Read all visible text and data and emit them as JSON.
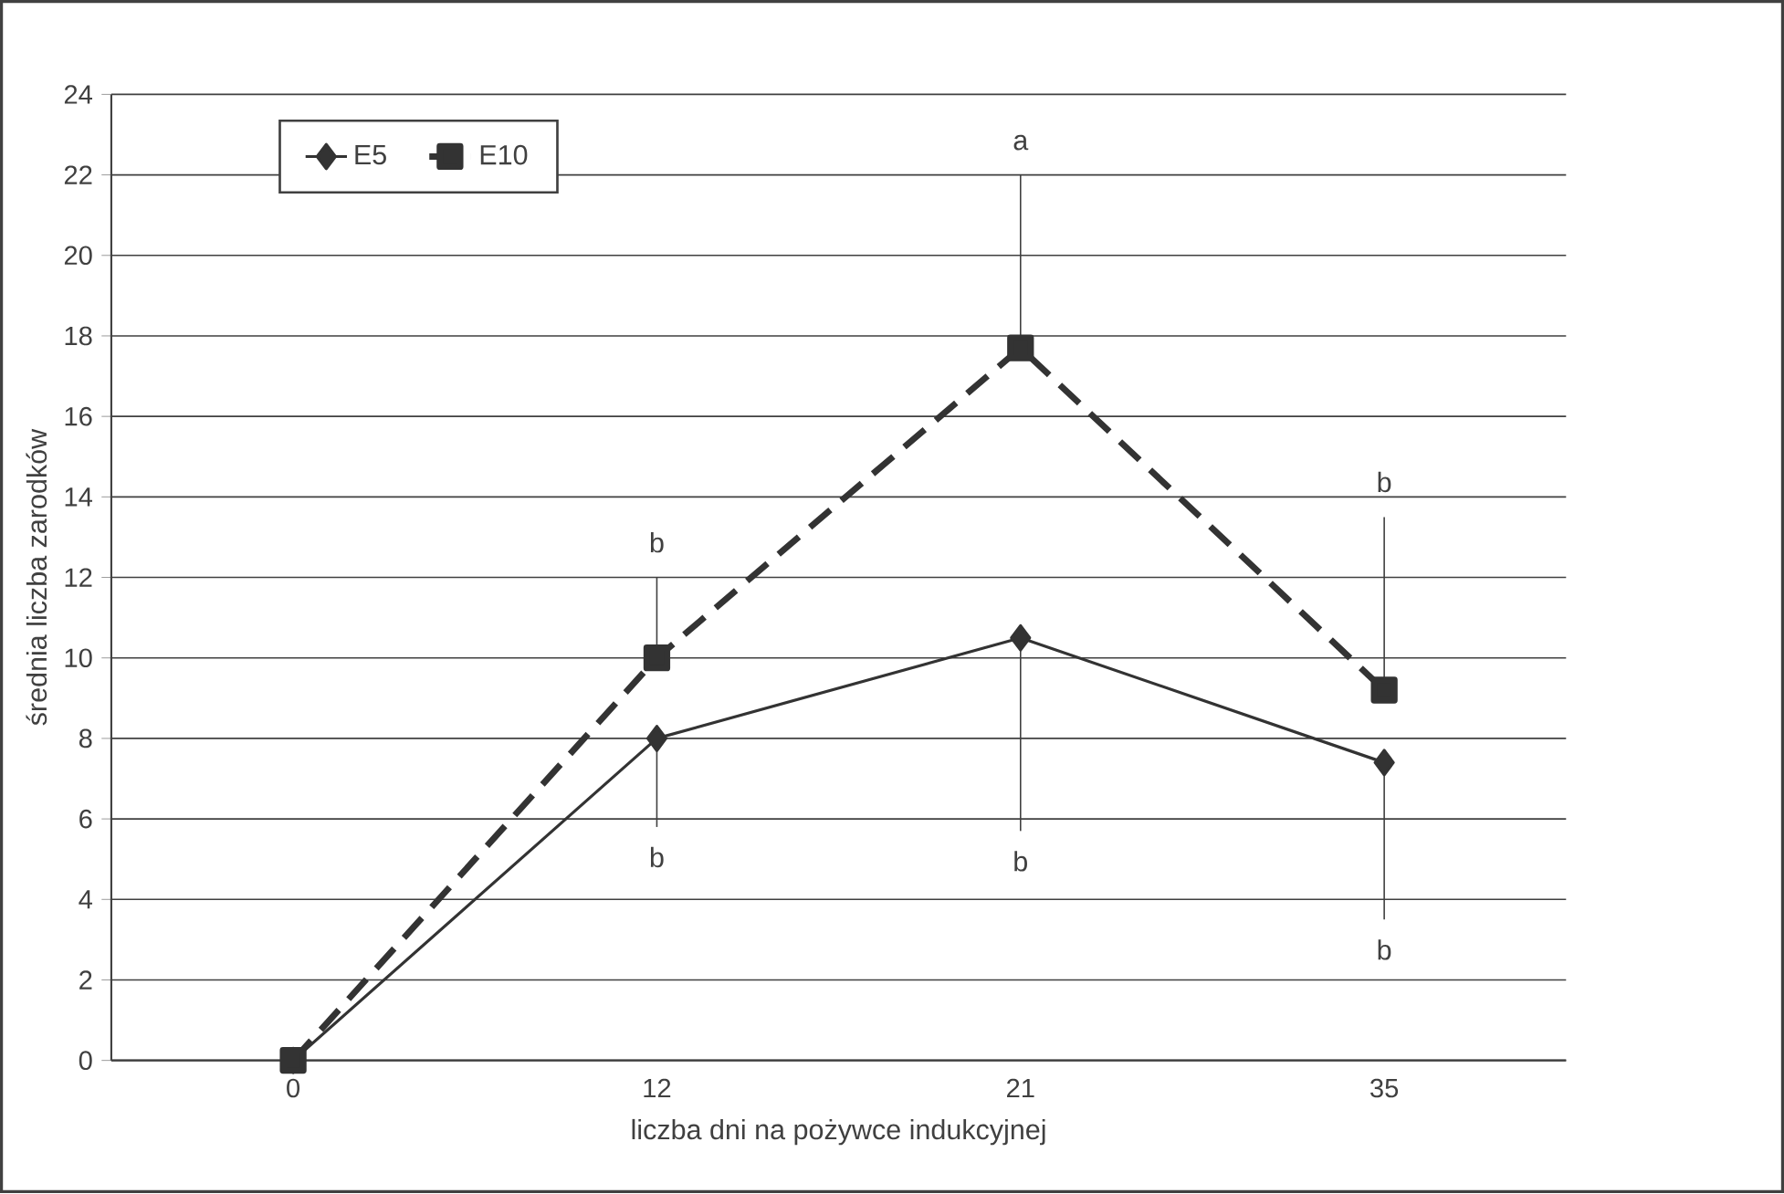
{
  "chart_data": {
    "type": "line",
    "xlabel": "liczba dni na pożywce indukcyjnej",
    "ylabel": "średnia liczba zarodków",
    "categories": [
      "0",
      "12",
      "21",
      "35"
    ],
    "series": [
      {
        "name": "E5",
        "color": "#333333",
        "values": [
          0,
          8.0,
          10.5,
          7.4
        ],
        "errors": [
          null,
          [
            5.8,
            8.0
          ],
          [
            5.7,
            10.5
          ],
          [
            3.5,
            7.4
          ]
        ],
        "marker": "diamond",
        "line_style": "solid"
      },
      {
        "name": "E10",
        "color": "#333333",
        "values": [
          0,
          10.0,
          17.7,
          9.2
        ],
        "errors": [
          null,
          [
            10.0,
            12.0
          ],
          [
            17.7,
            22.0
          ],
          [
            9.2,
            13.5
          ]
        ],
        "marker": "square",
        "line_style": "dashed"
      }
    ],
    "ylim": [
      0,
      24
    ],
    "yticks": [
      0,
      2,
      4,
      6,
      8,
      10,
      12,
      14,
      16,
      18,
      20,
      22,
      24
    ],
    "grid": "y",
    "legend": "top left",
    "annotations": [
      {
        "text": "b",
        "x": "12",
        "y": 12.0
      },
      {
        "text": "b",
        "x": "12",
        "y": 5.8
      },
      {
        "text": "a",
        "x": "21",
        "y": 22.0
      },
      {
        "text": "b",
        "x": "21",
        "y": 5.7
      },
      {
        "text": "b",
        "x": "35",
        "y": 13.5
      },
      {
        "text": "b",
        "x": "35",
        "y": 3.5
      }
    ]
  }
}
